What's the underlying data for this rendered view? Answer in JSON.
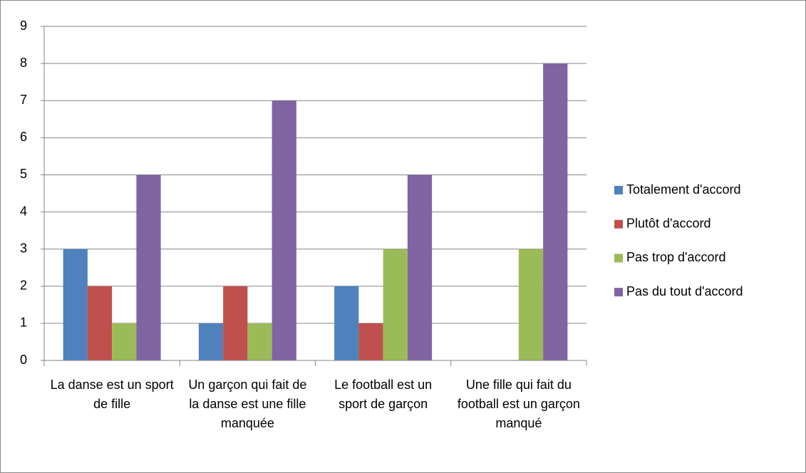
{
  "chart_data": {
    "type": "bar",
    "categories": [
      "La danse est un sport de fille",
      "Un garçon qui fait de la danse est une fille manquée",
      "Le football est un sport de garçon",
      "Une fille qui fait du football est un garçon manqué"
    ],
    "series": [
      {
        "name": "Totalement d'accord",
        "color": "#4f81bd",
        "values": [
          3,
          1,
          2,
          0
        ]
      },
      {
        "name": "Plutôt d'accord",
        "color": "#c0504d",
        "values": [
          2,
          2,
          1,
          0
        ]
      },
      {
        "name": "Pas trop d'accord",
        "color": "#9bbb59",
        "values": [
          1,
          1,
          3,
          3
        ]
      },
      {
        "name": "Pas du tout d'accord",
        "color": "#8064a2",
        "values": [
          5,
          7,
          5,
          8
        ]
      }
    ],
    "ylim": [
      0,
      9
    ],
    "yticks": [
      0,
      1,
      2,
      3,
      4,
      5,
      6,
      7,
      8,
      9
    ],
    "grid": true,
    "legend": "right"
  }
}
